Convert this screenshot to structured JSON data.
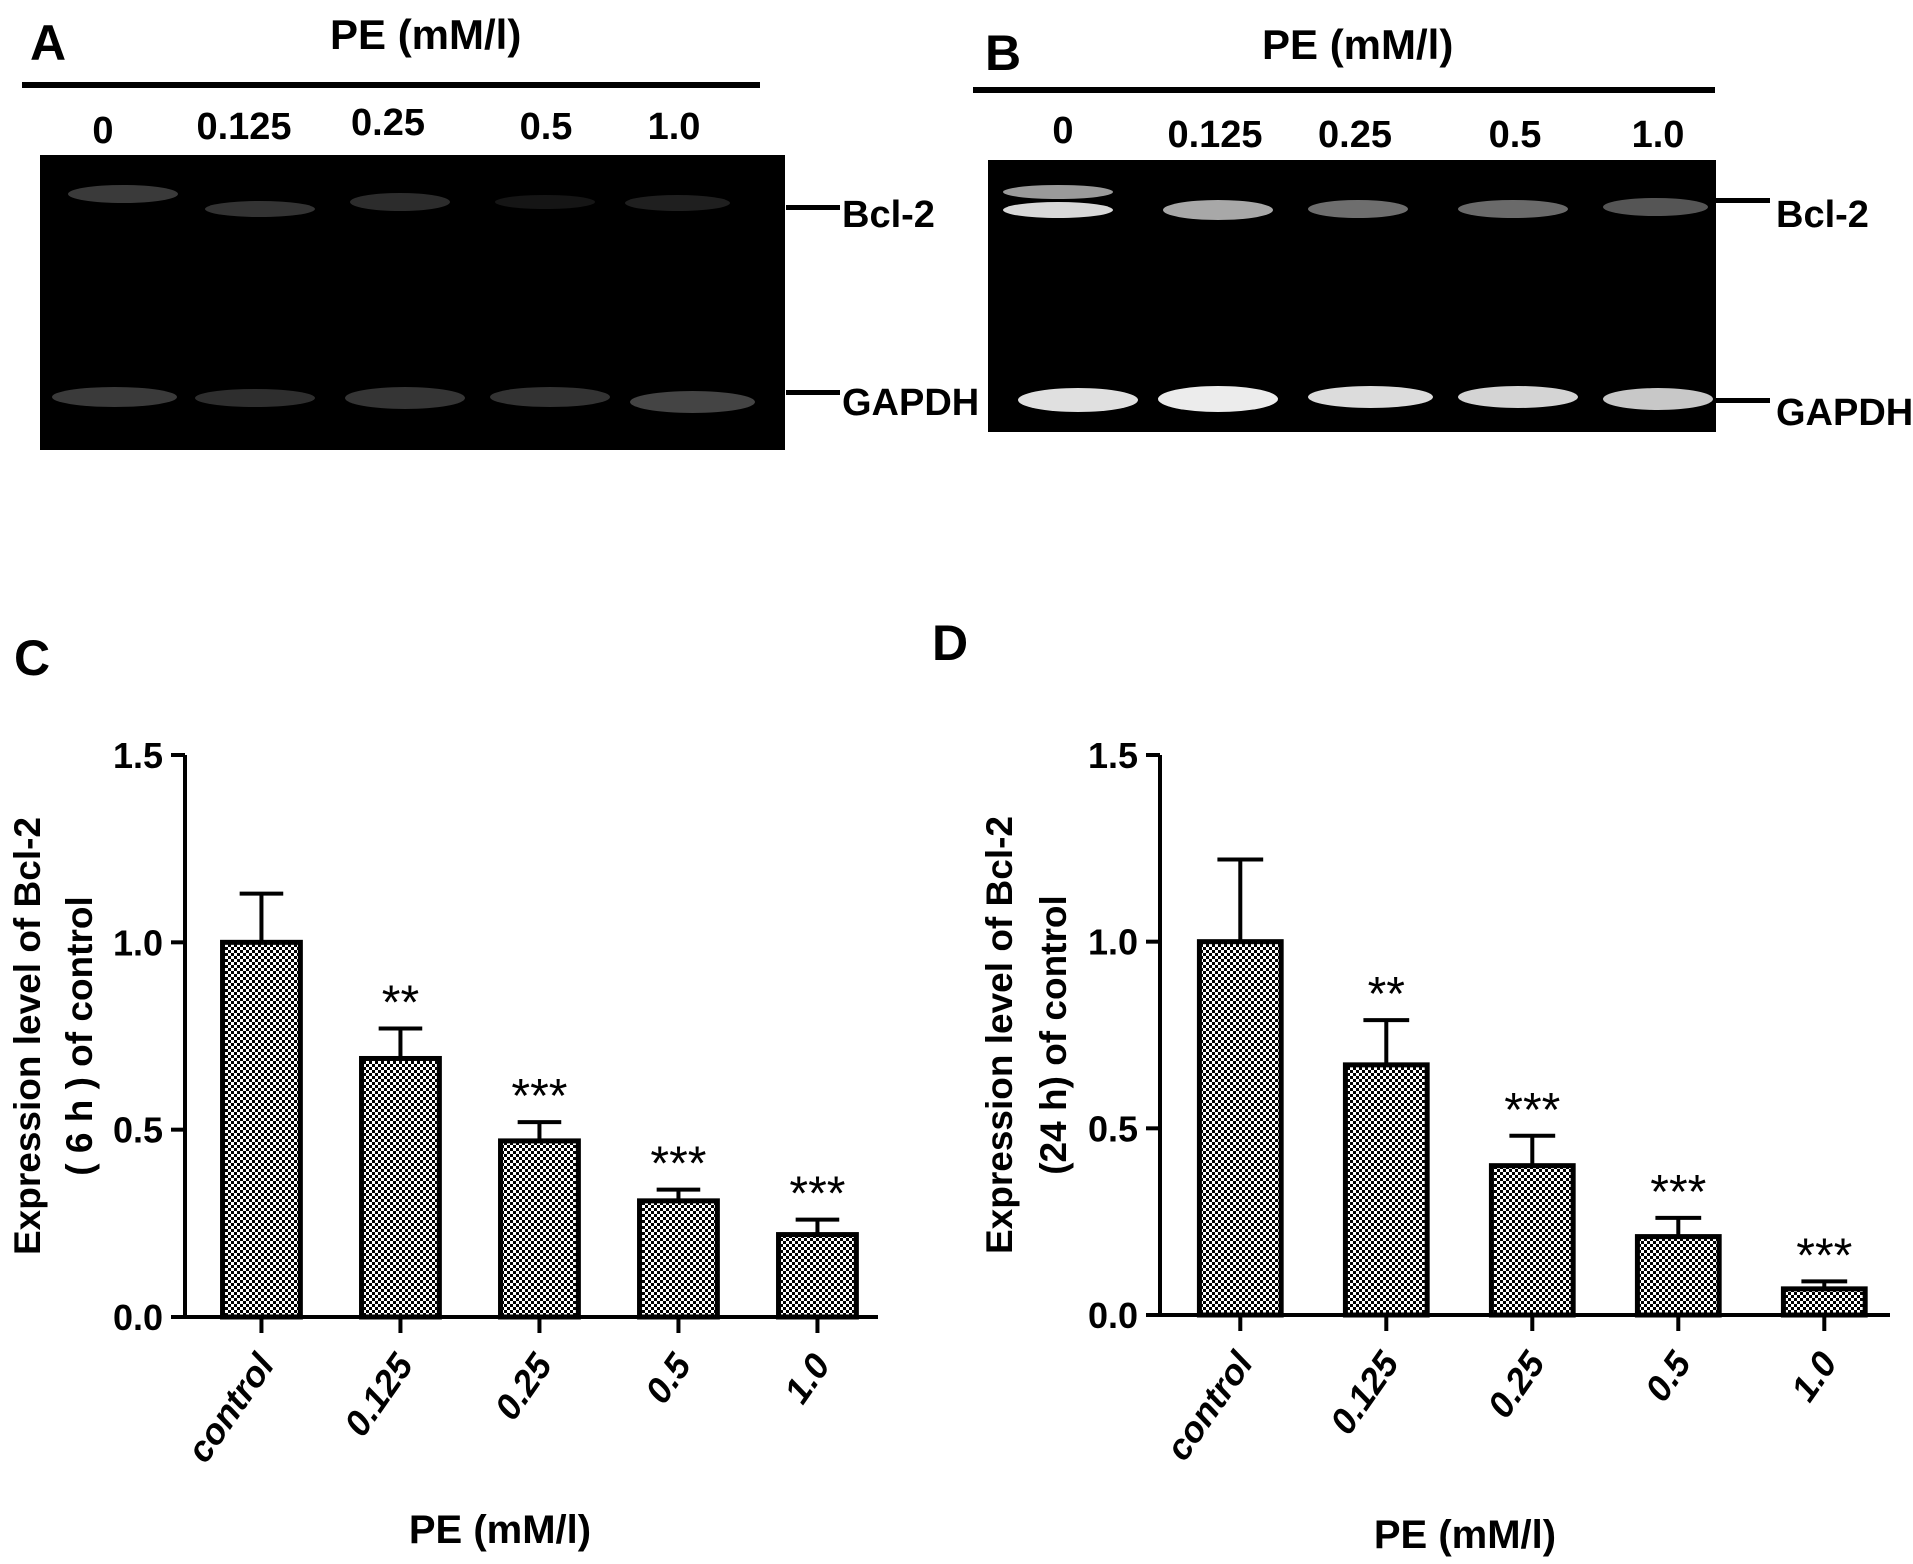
{
  "panels": {
    "A": {
      "letter": "A",
      "title": "PE (mM/l)",
      "lanes": [
        "0",
        "0.125",
        "0.25",
        "0.5",
        "1.0"
      ],
      "bands": [
        "Bcl-2",
        "GAPDH"
      ]
    },
    "B": {
      "letter": "B",
      "title": "PE (mM/l)",
      "lanes": [
        "0",
        "0.125",
        "0.25",
        "0.5",
        "1.0"
      ],
      "bands": [
        "Bcl-2",
        "GAPDH"
      ]
    },
    "C": {
      "letter": "C"
    },
    "D": {
      "letter": "D"
    }
  },
  "colors": {
    "bar_pattern_dark": "#000000",
    "bar_pattern_light": "#ffffff",
    "gel_background": "#000000"
  },
  "chart_data": [
    {
      "panel": "C",
      "type": "bar",
      "categories": [
        "control",
        "0.125",
        "0.25",
        "0.5",
        "1.0"
      ],
      "values": [
        1.0,
        0.69,
        0.47,
        0.31,
        0.22
      ],
      "errors": [
        0.13,
        0.08,
        0.05,
        0.03,
        0.04
      ],
      "annotations": [
        "",
        "**",
        "***",
        "***",
        "***"
      ],
      "xlabel": "PE (mM/l)",
      "ylabel": [
        "Expression level of Bcl-2",
        "( 6 h ) of control"
      ],
      "yticks": [
        "0.0",
        "0.5",
        "1.0",
        "1.5"
      ],
      "ylim": [
        0,
        1.5
      ],
      "grid": false
    },
    {
      "panel": "D",
      "type": "bar",
      "categories": [
        "control",
        "0.125",
        "0.25",
        "0.5",
        "1.0"
      ],
      "values": [
        1.0,
        0.67,
        0.4,
        0.21,
        0.07
      ],
      "errors": [
        0.22,
        0.12,
        0.08,
        0.05,
        0.02
      ],
      "annotations": [
        "",
        "**",
        "***",
        "***",
        "***"
      ],
      "xlabel": "PE (mM/l)",
      "ylabel": [
        "Expression level of Bcl-2",
        "(24 h) of control"
      ],
      "yticks": [
        "0.0",
        "0.5",
        "1.0",
        "1.5"
      ],
      "ylim": [
        0,
        1.5
      ],
      "grid": false
    }
  ]
}
